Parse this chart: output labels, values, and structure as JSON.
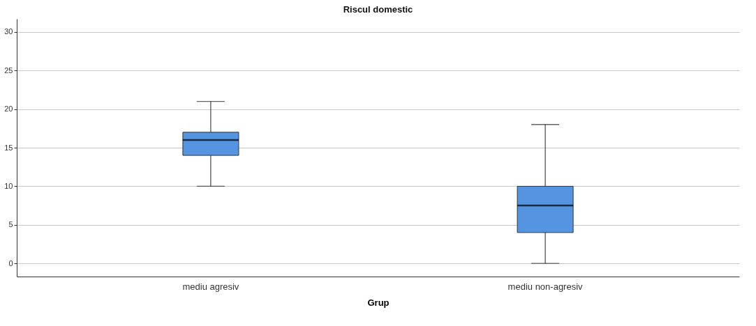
{
  "chart_data": {
    "type": "box",
    "title": "Riscul domestic",
    "xlabel": "Grup",
    "categories": [
      "mediu agresiv",
      "mediu non-agresiv"
    ],
    "boxes": [
      {
        "low": 10,
        "q1": 14,
        "median": 16,
        "q3": 17,
        "high": 21
      },
      {
        "low": 0,
        "q1": 4,
        "median": 7.5,
        "q3": 10,
        "high": 18
      }
    ],
    "color": "#5594e0",
    "ylim": [
      -1.7,
      31.7
    ],
    "yticks": [
      0,
      5,
      10,
      15,
      20,
      25,
      30
    ],
    "grid": "y"
  }
}
